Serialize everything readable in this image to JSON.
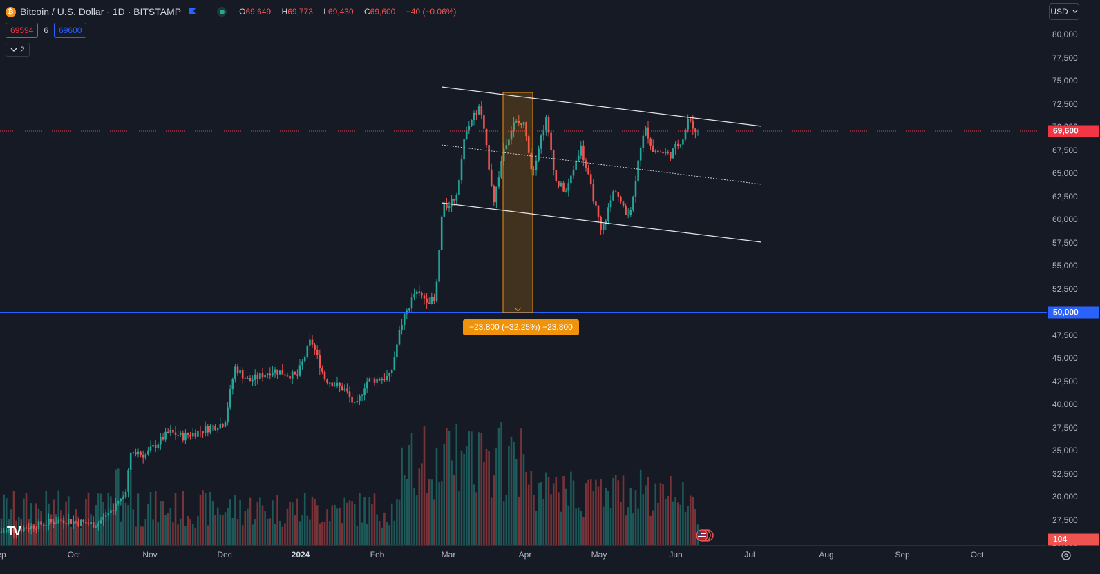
{
  "header": {
    "logo_letter": "₿",
    "symbol": "Bitcoin / U.S. Dollar · 1D · BITSTAMP",
    "ohlc": [
      {
        "label": "O",
        "value": "69,649"
      },
      {
        "label": "H",
        "value": "69,773"
      },
      {
        "label": "L",
        "value": "69,430"
      },
      {
        "label": "C",
        "value": "69,600"
      },
      {
        "label": "",
        "value": "−40 (−0.06%)"
      }
    ],
    "flag_icon": "flag-icon",
    "market_status_icon": "market-open-icon",
    "status_color": "#26a69a"
  },
  "bid_ask": {
    "bid": "69594",
    "spread": "6",
    "ask": "69600"
  },
  "indicators_toggle": {
    "count": "2",
    "icon": "chevron-down-icon"
  },
  "currency": {
    "label": "USD",
    "icon": "chevron-down-icon"
  },
  "colors": {
    "up": "#26a69a",
    "down": "#ef5350",
    "bg": "#161a25",
    "hline": "#2962ff",
    "measure": "#f0930c",
    "current_price": "#f23645"
  },
  "price_axis": {
    "ticks": [
      "80,000",
      "77,500",
      "75,000",
      "72,500",
      "70,000",
      "67,500",
      "65,000",
      "62,500",
      "60,000",
      "57,500",
      "55,000",
      "52,500",
      "47,500",
      "45,000",
      "42,500",
      "40,000",
      "37,500",
      "35,000",
      "32,500",
      "30,000",
      "27,500",
      "25,000"
    ],
    "current_price_label": "69,600",
    "hline_label": "50,000",
    "volume_label": "104"
  },
  "time_axis": {
    "ticks": [
      {
        "label": "ep",
        "bold": false
      },
      {
        "label": "Oct",
        "bold": false
      },
      {
        "label": "Nov",
        "bold": false
      },
      {
        "label": "Dec",
        "bold": false
      },
      {
        "label": "2024",
        "bold": true
      },
      {
        "label": "Feb",
        "bold": false
      },
      {
        "label": "Mar",
        "bold": false
      },
      {
        "label": "Apr",
        "bold": false
      },
      {
        "label": "May",
        "bold": false
      },
      {
        "label": "Jun",
        "bold": false
      },
      {
        "label": "Jul",
        "bold": false
      },
      {
        "label": "Aug",
        "bold": false
      },
      {
        "label": "Sep",
        "bold": false
      },
      {
        "label": "Oct",
        "bold": false
      }
    ]
  },
  "measure_label": "−23,800 (−32.25%) −23,800",
  "watermark": "TV",
  "settings_icon": "settings-icon"
}
